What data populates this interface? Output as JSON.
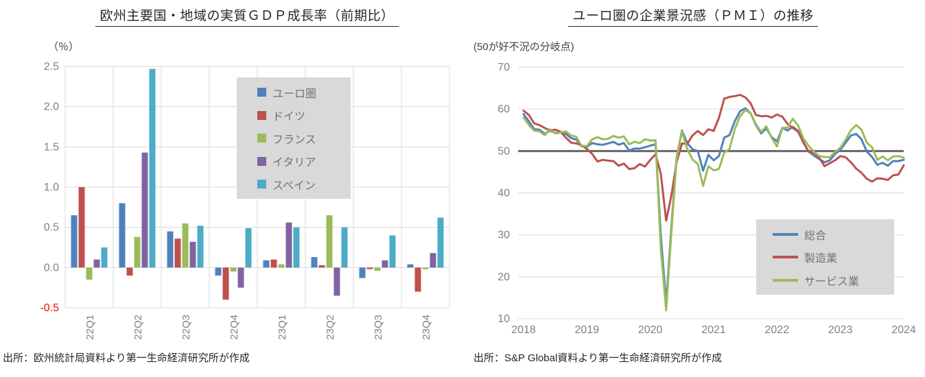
{
  "palette": {
    "tick_label": "#808080",
    "gridline": "#D9D9D9",
    "legend_bg": "#D9D9D9",
    "legend_text": "#737373",
    "negative_tick": "#FF0000",
    "baseline": "#666666",
    "title_text": "#262626"
  },
  "chart_data": [
    {
      "type": "bar",
      "title": "欧州主要国・地域の実質ＧＤＰ成長率（前期比）",
      "unit_label": "（％）",
      "xlabel": "",
      "ylabel": "％",
      "ylim": [
        -0.5,
        2.5
      ],
      "grid": true,
      "legend_position": "upper-center-inside",
      "source": "出所：欧州統計局資料より第一生命経済研究所が作成",
      "categories": [
        "22Q1",
        "22Q2",
        "22Q3",
        "22Q4",
        "23Q1",
        "23Q2",
        "23Q3",
        "23Q4"
      ],
      "y_ticks": [
        {
          "label": "2.5",
          "value": 2.5
        },
        {
          "label": "2.0",
          "value": 2.0
        },
        {
          "label": "1.5",
          "value": 1.5
        },
        {
          "label": "1.0",
          "value": 1.0
        },
        {
          "label": "0.5",
          "value": 0.5
        },
        {
          "label": "0.0",
          "value": 0.0
        },
        {
          "label": "-0.5",
          "value": -0.5,
          "color": "#FF0000"
        }
      ],
      "series": [
        {
          "name": "ユーロ圏",
          "color": "#4F81BD",
          "values": [
            0.65,
            0.8,
            0.45,
            -0.1,
            0.09,
            0.13,
            -0.13,
            0.04
          ]
        },
        {
          "name": "ドイツ",
          "color": "#C0504D",
          "values": [
            1.0,
            -0.1,
            0.36,
            -0.4,
            0.1,
            0.03,
            -0.02,
            -0.3
          ]
        },
        {
          "name": "フランス",
          "color": "#9BBB59",
          "values": [
            -0.15,
            0.38,
            0.55,
            -0.05,
            0.04,
            0.65,
            -0.04,
            -0.02
          ]
        },
        {
          "name": "イタリア",
          "color": "#8064A2",
          "values": [
            0.1,
            1.43,
            0.32,
            -0.25,
            0.56,
            -0.35,
            0.09,
            0.18
          ]
        },
        {
          "name": "スペイン",
          "color": "#4BACC6",
          "values": [
            0.25,
            2.47,
            0.52,
            0.49,
            0.5,
            0.5,
            0.4,
            0.62
          ]
        }
      ]
    },
    {
      "type": "line",
      "title": "ユーロ圏の企業景況感（ＰＭＩ）の推移",
      "note": "(50が好不況の分岐点)",
      "xlabel": "",
      "ylabel": "PMI",
      "ylim": [
        10,
        70
      ],
      "grid": true,
      "legend_position": "lower-right-inside",
      "source": "出所：S&P Global資料より第一生命経済研究所が作成",
      "x_tick_labels": [
        "2018",
        "2019",
        "2020",
        "2021",
        "2022",
        "2023",
        "2024"
      ],
      "x_frequency": "monthly",
      "x_start": "2018-01",
      "x_end": "2024-01",
      "baseline": {
        "value": 50,
        "color": "#666666"
      },
      "y_ticks": [
        {
          "label": "70",
          "value": 70
        },
        {
          "label": "60",
          "value": 60
        },
        {
          "label": "50",
          "value": 50
        },
        {
          "label": "40",
          "value": 40
        },
        {
          "label": "30",
          "value": 30
        },
        {
          "label": "20",
          "value": 20
        },
        {
          "label": "10",
          "value": 10
        }
      ],
      "series": [
        {
          "name": "総合",
          "color": "#4F81BD",
          "values": [
            58.8,
            57.1,
            55.2,
            55.1,
            54.1,
            54.9,
            54.3,
            54.5,
            54.1,
            53.1,
            52.7,
            51.1,
            51.0,
            51.9,
            51.6,
            51.5,
            51.8,
            52.2,
            51.5,
            51.9,
            50.1,
            50.6,
            50.6,
            50.9,
            51.3,
            51.6,
            29.7,
            13.6,
            31.9,
            48.5,
            54.9,
            51.9,
            50.4,
            50.0,
            45.3,
            49.1,
            47.8,
            48.8,
            53.2,
            53.8,
            57.1,
            59.5,
            60.2,
            59.0,
            56.2,
            54.2,
            55.4,
            53.3,
            52.3,
            55.5,
            54.9,
            55.8,
            54.8,
            52.0,
            49.9,
            48.9,
            48.1,
            47.3,
            47.8,
            49.3,
            50.3,
            52.0,
            53.7,
            54.1,
            52.8,
            49.9,
            48.6,
            46.7,
            47.2,
            46.5,
            47.6,
            47.6,
            47.9
          ]
        },
        {
          "name": "製造業",
          "color": "#C0504D",
          "values": [
            59.6,
            58.6,
            56.6,
            56.2,
            55.5,
            54.9,
            55.1,
            54.6,
            53.2,
            52.0,
            51.8,
            51.4,
            50.5,
            49.3,
            47.5,
            47.9,
            47.7,
            47.6,
            46.5,
            47.0,
            45.7,
            45.9,
            46.9,
            46.3,
            47.9,
            49.2,
            44.5,
            33.4,
            39.4,
            47.4,
            51.8,
            51.7,
            53.7,
            54.8,
            53.8,
            55.2,
            54.8,
            57.9,
            62.5,
            62.9,
            63.1,
            63.4,
            62.8,
            61.4,
            58.6,
            58.3,
            58.4,
            58.0,
            58.7,
            58.2,
            56.5,
            55.5,
            54.6,
            52.1,
            49.8,
            49.6,
            48.4,
            46.4,
            47.1,
            47.8,
            48.8,
            48.5,
            47.3,
            45.8,
            44.8,
            43.4,
            42.7,
            43.5,
            43.4,
            43.1,
            44.2,
            44.4,
            46.6
          ]
        },
        {
          "name": "サービス業",
          "color": "#9BBB59",
          "values": [
            58.0,
            56.2,
            54.9,
            54.7,
            53.8,
            55.2,
            54.2,
            54.4,
            54.7,
            53.7,
            53.4,
            51.2,
            51.2,
            52.8,
            53.3,
            52.8,
            52.9,
            53.6,
            53.2,
            53.5,
            51.6,
            52.2,
            51.9,
            52.8,
            52.5,
            52.6,
            26.4,
            12.0,
            30.5,
            48.3,
            54.7,
            50.5,
            48.0,
            46.9,
            41.7,
            46.4,
            45.4,
            45.7,
            49.6,
            50.5,
            55.2,
            58.3,
            59.8,
            59.0,
            56.4,
            54.6,
            55.9,
            53.1,
            51.1,
            55.5,
            55.6,
            57.7,
            56.1,
            53.0,
            51.2,
            49.8,
            48.8,
            48.6,
            48.5,
            49.8,
            50.8,
            52.7,
            55.0,
            56.2,
            55.1,
            52.0,
            50.9,
            47.9,
            48.7,
            47.8,
            48.7,
            48.8,
            48.4
          ]
        }
      ]
    }
  ]
}
